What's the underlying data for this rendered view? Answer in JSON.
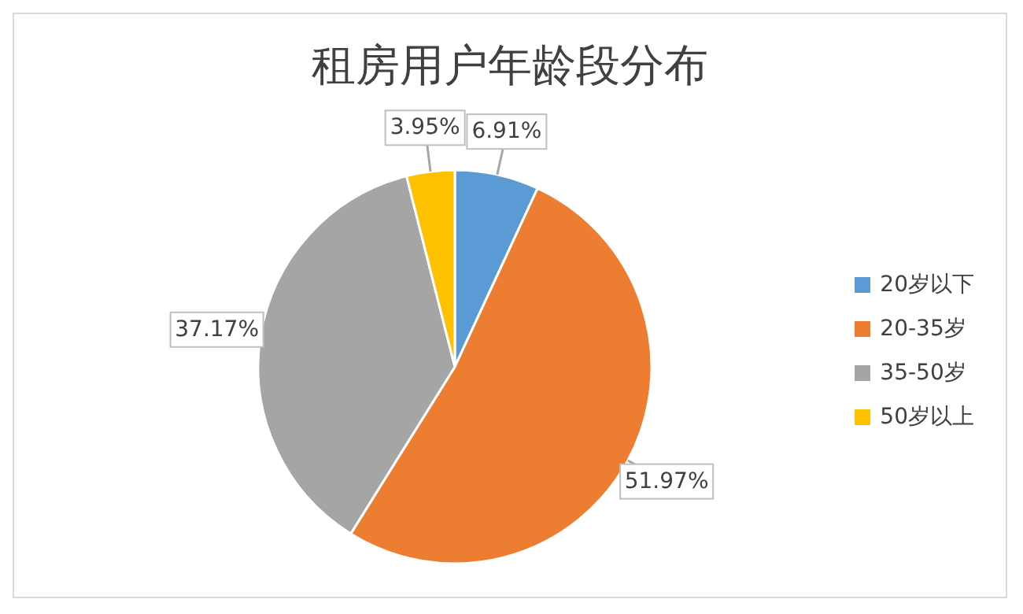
{
  "chart_data": {
    "type": "pie",
    "title": "租房用户年龄段分布",
    "categories": [
      "20岁以下",
      "20-35岁",
      "35-50岁",
      "50岁以上"
    ],
    "values": [
      6.91,
      51.97,
      37.17,
      3.95
    ],
    "value_labels": [
      "6.91%",
      "51.97%",
      "37.17%",
      "3.95%"
    ],
    "colors": [
      "#5b9bd5",
      "#ed7d31",
      "#a5a5a5",
      "#ffc000"
    ],
    "legend": "right"
  }
}
